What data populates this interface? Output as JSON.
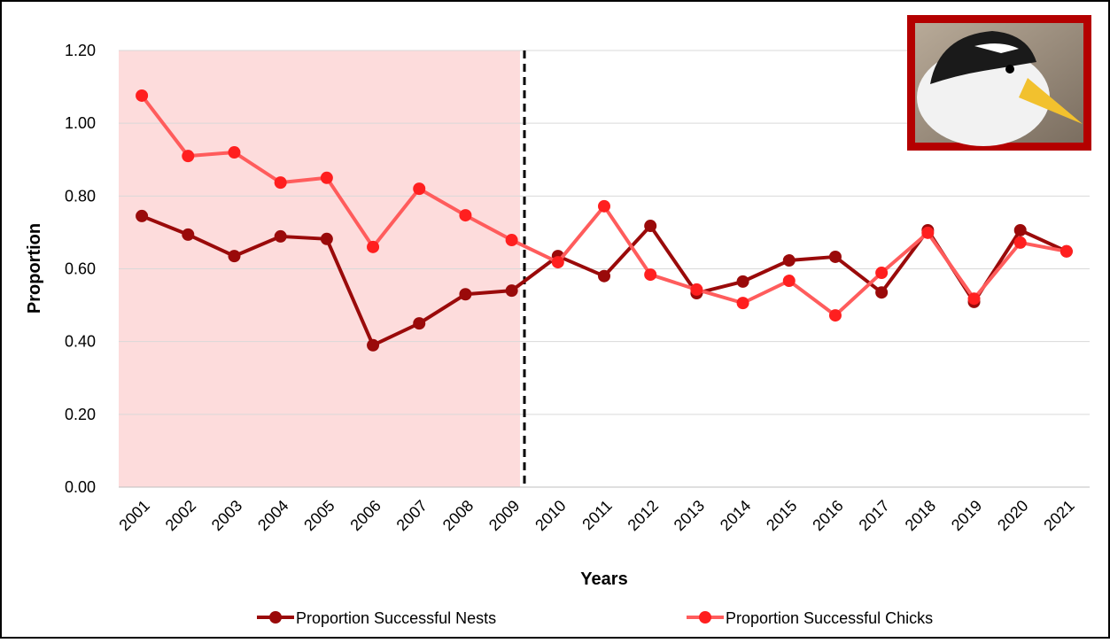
{
  "chart_data": {
    "type": "line",
    "x_label": "Years",
    "y_label": "Proportion",
    "categories": [
      "2001",
      "2002",
      "2003",
      "2004",
      "2005",
      "2006",
      "2007",
      "2008",
      "2009",
      "2010",
      "2011",
      "2012",
      "2013",
      "2014",
      "2015",
      "2016",
      "2017",
      "2018",
      "2019",
      "2020",
      "2021"
    ],
    "series": [
      {
        "name": "Proportion Successful Nests",
        "color": "#9a0a0a",
        "values": [
          0.745,
          0.694,
          0.635,
          0.689,
          0.682,
          0.39,
          0.45,
          0.53,
          0.54,
          0.635,
          0.58,
          0.718,
          0.533,
          0.565,
          0.623,
          0.633,
          0.535,
          0.706,
          0.509,
          0.706,
          0.648
        ]
      },
      {
        "name": "Proportion Successful Chicks",
        "color": "#ff5c5c",
        "values": [
          1.076,
          0.91,
          0.92,
          0.837,
          0.85,
          0.66,
          0.82,
          0.747,
          0.679,
          0.618,
          0.772,
          0.584,
          0.543,
          0.506,
          0.567,
          0.472,
          0.589,
          0.699,
          0.518,
          0.672,
          0.648
        ]
      }
    ],
    "ylim": [
      0,
      1.2
    ],
    "yticks": [
      {
        "value": 0,
        "label": "0.00"
      },
      {
        "value": 0.2,
        "label": "0.20"
      },
      {
        "value": 0.4,
        "label": "0.40"
      },
      {
        "value": 0.6,
        "label": "0.60"
      },
      {
        "value": 0.8,
        "label": "0.80"
      },
      {
        "value": 1,
        "label": "1.00"
      },
      {
        "value": 1.2,
        "label": "1.20"
      }
    ],
    "grid": true,
    "legend": "bottom"
  }
}
